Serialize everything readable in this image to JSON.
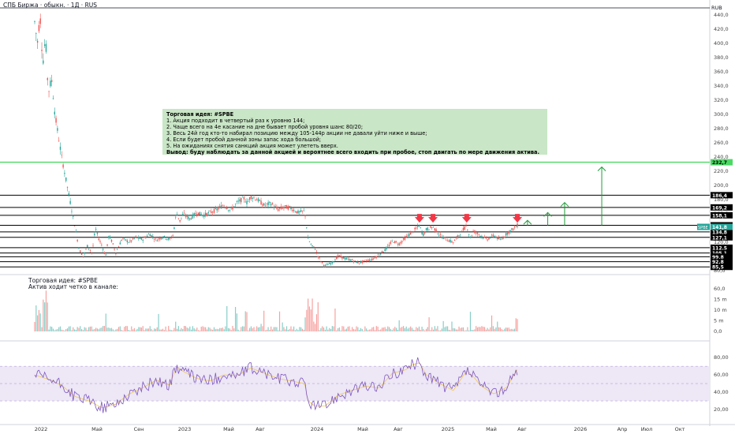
{
  "header": {
    "title": "СПБ Биржа · обыкн. · 1Д · RUS",
    "currency": "RUB"
  },
  "note": {
    "title": "Торговая идея: #SPBE",
    "lines": [
      "1. Акция подходит в четвертый раз к уровню 144;",
      "2. Чаще всего на 4е касание на дне бывает пробой уровня шанс 80/20;",
      "3. Весь 24й год кто-то набирал позицию между 105-144р акции не давали уйти ниже и выше;",
      "4. Если будет пробой данной зоны запас хода большой;",
      "5. На ожиданиях снятия санкций акция может улететь вверх.",
      "Вывод: буду наблюдать за данной акцией и вероятнее всего входить при пробое, стоп двигать по мере движения актива."
    ]
  },
  "sub_note": {
    "title": "Торговая идея: #SPBE",
    "line": "Актив ходит четко в канале:"
  },
  "colors": {
    "level_line": "#000000",
    "green_level": "#4cd964",
    "arrow_up": "#1e9e3a",
    "arrow_down": "#f23645",
    "bar_up": "#26a69a",
    "bar_down": "#ef5350",
    "rsi_line": "#7e57c2",
    "rsi_band": "#ede7f6",
    "rsi_ma": "#f2c94c",
    "current_price_bg": "#26a69a"
  },
  "chart_data": [
    {
      "type": "line",
      "name": "price",
      "y_axis_ticks": [
        "440,0",
        "420,0",
        "400,0",
        "380,0",
        "360,0",
        "340,0",
        "320,0",
        "300,0",
        "280,0",
        "260,0",
        "240,0",
        "220,0",
        "200,0",
        "180,0",
        "160,0",
        "140,0",
        "120,0",
        "100,0",
        "80,0"
      ],
      "ylim": [
        78,
        452
      ],
      "x_axis_labels": [
        "2022",
        "Май",
        "Сен",
        "2023",
        "Май",
        "Авг",
        "2024",
        "Май",
        "Авг",
        "2025",
        "Май",
        "Авг",
        "2026",
        "Апр",
        "Июл",
        "Окт"
      ],
      "levels": [
        {
          "label": "232,7",
          "value": 232.7,
          "green": true
        },
        {
          "label": "186,4",
          "value": 186.4
        },
        {
          "label": "169,2",
          "value": 169.2
        },
        {
          "label": "158,1",
          "value": 158.1
        },
        {
          "label": "144,0",
          "value": 144.0
        },
        {
          "label": "134,8",
          "value": 134.8
        },
        {
          "label": "127,1",
          "value": 127.1
        },
        {
          "label": "112,5",
          "value": 112.5
        },
        {
          "label": "105,1",
          "value": 105.1
        },
        {
          "label": "99,8",
          "value": 99.8
        },
        {
          "label": "92,8",
          "value": 92.8
        },
        {
          "label": "85,5",
          "value": 85.5
        }
      ],
      "current": {
        "ticker": "SPBE",
        "label": "141,8",
        "value": 141.8
      },
      "anchors": [
        [
          0.0,
          430
        ],
        [
          0.004,
          400
        ],
        [
          0.008,
          440
        ],
        [
          0.012,
          370
        ],
        [
          0.016,
          410
        ],
        [
          0.02,
          330
        ],
        [
          0.025,
          350
        ],
        [
          0.03,
          300
        ],
        [
          0.035,
          270
        ],
        [
          0.04,
          240
        ],
        [
          0.045,
          215
        ],
        [
          0.05,
          190
        ],
        [
          0.055,
          165
        ],
        [
          0.06,
          140
        ],
        [
          0.066,
          110
        ],
        [
          0.072,
          100
        ],
        [
          0.078,
          115
        ],
        [
          0.085,
          105
        ],
        [
          0.09,
          140
        ],
        [
          0.095,
          125
        ],
        [
          0.1,
          115
        ],
        [
          0.105,
          100
        ],
        [
          0.11,
          130
        ],
        [
          0.115,
          120
        ],
        [
          0.12,
          105
        ],
        [
          0.13,
          126
        ],
        [
          0.14,
          120
        ],
        [
          0.15,
          127
        ],
        [
          0.16,
          124
        ],
        [
          0.17,
          132
        ],
        [
          0.175,
          128
        ],
        [
          0.18,
          123
        ],
        [
          0.19,
          128
        ],
        [
          0.2,
          124
        ],
        [
          0.205,
          130
        ],
        [
          0.21,
          162
        ],
        [
          0.215,
          150
        ],
        [
          0.22,
          160
        ],
        [
          0.23,
          153
        ],
        [
          0.24,
          162
        ],
        [
          0.25,
          158
        ],
        [
          0.26,
          162
        ],
        [
          0.27,
          166
        ],
        [
          0.28,
          173
        ],
        [
          0.29,
          165
        ],
        [
          0.3,
          176
        ],
        [
          0.31,
          182
        ],
        [
          0.315,
          175
        ],
        [
          0.32,
          185
        ],
        [
          0.33,
          180
        ],
        [
          0.34,
          172
        ],
        [
          0.35,
          175
        ],
        [
          0.36,
          166
        ],
        [
          0.37,
          170
        ],
        [
          0.38,
          168
        ],
        [
          0.39,
          162
        ],
        [
          0.4,
          164
        ],
        [
          0.405,
          125
        ],
        [
          0.41,
          115
        ],
        [
          0.415,
          112
        ],
        [
          0.42,
          100
        ],
        [
          0.425,
          92
        ],
        [
          0.43,
          87
        ],
        [
          0.44,
          91
        ],
        [
          0.45,
          101
        ],
        [
          0.46,
          97
        ],
        [
          0.47,
          95
        ],
        [
          0.48,
          91
        ],
        [
          0.49,
          94
        ],
        [
          0.5,
          96
        ],
        [
          0.51,
          103
        ],
        [
          0.52,
          110
        ],
        [
          0.53,
          122
        ],
        [
          0.54,
          118
        ],
        [
          0.55,
          127
        ],
        [
          0.56,
          135
        ],
        [
          0.57,
          144
        ],
        [
          0.575,
          130
        ],
        [
          0.58,
          138
        ],
        [
          0.59,
          142
        ],
        [
          0.6,
          130
        ],
        [
          0.61,
          124
        ],
        [
          0.62,
          120
        ],
        [
          0.63,
          132
        ],
        [
          0.64,
          144
        ],
        [
          0.645,
          126
        ],
        [
          0.65,
          136
        ],
        [
          0.66,
          130
        ],
        [
          0.67,
          124
        ],
        [
          0.68,
          130
        ],
        [
          0.69,
          123
        ],
        [
          0.7,
          133
        ],
        [
          0.71,
          140
        ],
        [
          0.715,
          144
        ]
      ],
      "down_arrows": [
        0.57,
        0.59,
        0.64,
        0.715
      ],
      "up_arrows": [
        {
          "x": 0.73,
          "to": 151
        },
        {
          "x": 0.76,
          "to": 162
        },
        {
          "x": 0.785,
          "to": 176
        },
        {
          "x": 0.84,
          "to": 226
        }
      ]
    },
    {
      "type": "bar",
      "name": "volume",
      "y_axis_ticks": [
        "60,0",
        "15 m",
        "10 m",
        "5 m",
        "0,0"
      ]
    },
    {
      "type": "line",
      "name": "rsi",
      "y_axis_ticks": [
        "80,00",
        "60,00",
        "40,00",
        "20,00"
      ],
      "ylim": [
        10,
        92
      ],
      "band": [
        30,
        70
      ],
      "anchors": [
        [
          0.0,
          60
        ],
        [
          0.02,
          55
        ],
        [
          0.04,
          48
        ],
        [
          0.06,
          35
        ],
        [
          0.08,
          30
        ],
        [
          0.1,
          22
        ],
        [
          0.12,
          26
        ],
        [
          0.14,
          38
        ],
        [
          0.16,
          45
        ],
        [
          0.18,
          54
        ],
        [
          0.2,
          48
        ],
        [
          0.21,
          70
        ],
        [
          0.22,
          64
        ],
        [
          0.24,
          56
        ],
        [
          0.26,
          53
        ],
        [
          0.28,
          60
        ],
        [
          0.3,
          59
        ],
        [
          0.32,
          68
        ],
        [
          0.34,
          62
        ],
        [
          0.36,
          56
        ],
        [
          0.38,
          53
        ],
        [
          0.4,
          50
        ],
        [
          0.405,
          30
        ],
        [
          0.415,
          24
        ],
        [
          0.43,
          24
        ],
        [
          0.45,
          37
        ],
        [
          0.47,
          42
        ],
        [
          0.49,
          47
        ],
        [
          0.51,
          45
        ],
        [
          0.53,
          62
        ],
        [
          0.55,
          66
        ],
        [
          0.56,
          72
        ],
        [
          0.57,
          74
        ],
        [
          0.58,
          60
        ],
        [
          0.6,
          50
        ],
        [
          0.62,
          42
        ],
        [
          0.64,
          65
        ],
        [
          0.65,
          58
        ],
        [
          0.66,
          48
        ],
        [
          0.68,
          38
        ],
        [
          0.7,
          46
        ],
        [
          0.71,
          60
        ],
        [
          0.715,
          66
        ]
      ]
    }
  ]
}
